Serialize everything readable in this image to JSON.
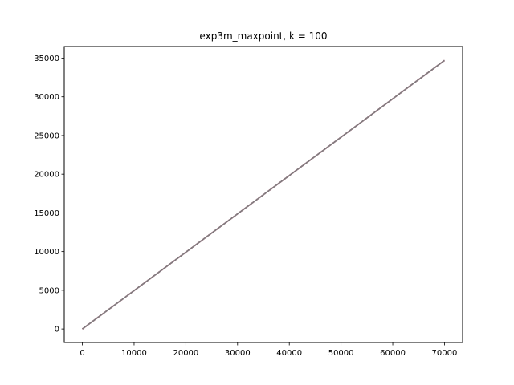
{
  "chart_data": {
    "type": "line",
    "title": "exp3m_maxpoint, k = 100",
    "xlabel": "",
    "ylabel": "",
    "xlim": [
      -3500,
      73500
    ],
    "ylim": [
      -1750,
      36500
    ],
    "x_ticks": [
      0,
      10000,
      20000,
      30000,
      40000,
      50000,
      60000,
      70000
    ],
    "y_ticks": [
      0,
      5000,
      10000,
      15000,
      20000,
      25000,
      30000,
      35000
    ],
    "x_tick_labels": [
      "0",
      "10000",
      "20000",
      "30000",
      "40000",
      "50000",
      "60000",
      "70000"
    ],
    "y_tick_labels": [
      "0",
      "5000",
      "10000",
      "15000",
      "20000",
      "25000",
      "30000",
      "35000"
    ],
    "grid": false,
    "series": [
      {
        "color": "#1f77b4",
        "x": [
          0,
          70000
        ],
        "y": [
          0,
          34700
        ]
      },
      {
        "color": "#ff7f0e",
        "x": [
          0,
          70000
        ],
        "y": [
          0,
          34700
        ]
      },
      {
        "color": "#2ca02c",
        "x": [
          0,
          70000
        ],
        "y": [
          0,
          34700
        ]
      },
      {
        "color": "#d62728",
        "x": [
          0,
          70000
        ],
        "y": [
          0,
          34700
        ]
      },
      {
        "color": "#9467bd",
        "x": [
          0,
          70000
        ],
        "y": [
          0,
          34700
        ]
      },
      {
        "color": "#8c564b",
        "x": [
          0,
          70000
        ],
        "y": [
          0,
          34700
        ]
      },
      {
        "color": "#e377c2",
        "x": [
          0,
          70000
        ],
        "y": [
          0,
          34700
        ]
      },
      {
        "color": "#7f7f7f",
        "x": [
          0,
          70000
        ],
        "y": [
          0,
          34700
        ]
      }
    ]
  }
}
